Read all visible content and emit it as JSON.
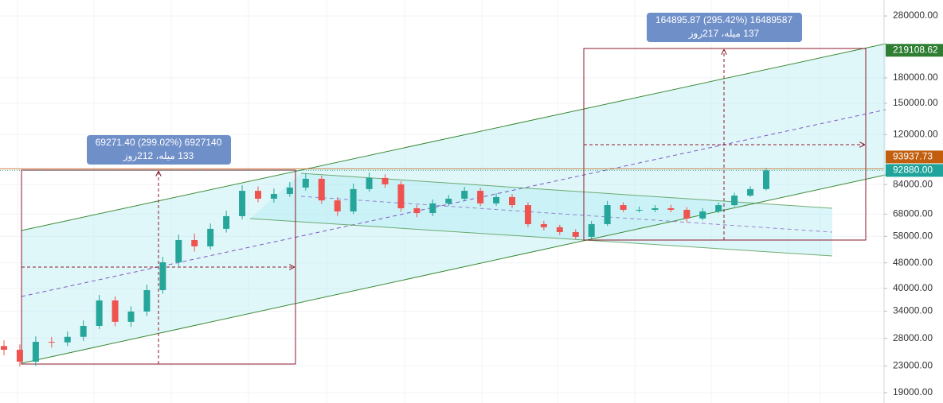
{
  "chart_data": {
    "type": "candlestick",
    "log_scale": true,
    "grid": true,
    "up_color": "#26a69a",
    "down_color": "#ef5350",
    "ylim": [
      17640,
      313800
    ],
    "yticks": [
      {
        "value": 280000,
        "label": "280000.00"
      },
      {
        "value": 180000,
        "label": "180000.00"
      },
      {
        "value": 150000,
        "label": "150000.00"
      },
      {
        "value": 120000,
        "label": "120000.00"
      },
      {
        "value": 84000,
        "label": "84000.00"
      },
      {
        "value": 68000,
        "label": "68000.00"
      },
      {
        "value": 58000,
        "label": "58000.00"
      },
      {
        "value": 48000,
        "label": "48000.00"
      },
      {
        "value": 40000,
        "label": "40000.00"
      },
      {
        "value": 34000,
        "label": "34000.00"
      },
      {
        "value": 28000,
        "label": "28000.00"
      },
      {
        "value": 23000,
        "label": "23000.00"
      },
      {
        "value": 19000,
        "label": "19000.00"
      }
    ],
    "open": [
      26500,
      25800,
      23700,
      27300,
      27200,
      28300,
      30600,
      36700,
      31500,
      33900,
      39500,
      48200,
      56500,
      54000,
      61200,
      67000,
      80300,
      75900,
      78500,
      82200,
      87500,
      75000,
      69300,
      81300,
      88000,
      84100,
      70900,
      68500,
      73400,
      75900,
      80300,
      73400,
      76800,
      72500,
      63300,
      61900,
      59800,
      57800,
      63300,
      72500,
      70100,
      70100,
      70900,
      70100,
      65900,
      69300,
      72500,
      77600,
      81300
    ],
    "high": [
      27600,
      26800,
      28400,
      28300,
      29400,
      31800,
      38200,
      37800,
      35200,
      41100,
      50100,
      58800,
      59200,
      63600,
      69700,
      83500,
      82800,
      81600,
      85500,
      91000,
      89500,
      76700,
      84500,
      91500,
      90400,
      86000,
      72500,
      75500,
      78000,
      82600,
      82000,
      78900,
      78400,
      74000,
      64800,
      63000,
      61000,
      64800,
      74700,
      74000,
      71800,
      72500,
      72600,
      71500,
      70900,
      74000,
      79200,
      83000,
      94500
    ],
    "low": [
      24800,
      22900,
      23000,
      26200,
      26500,
      27500,
      29900,
      30500,
      30400,
      32800,
      38500,
      46900,
      52000,
      52800,
      59600,
      65500,
      74000,
      73800,
      76900,
      80500,
      73200,
      67100,
      68000,
      79800,
      82000,
      69200,
      66500,
      67000,
      72000,
      74500,
      72000,
      72200,
      71000,
      62000,
      60500,
      58600,
      56700,
      57000,
      62500,
      69000,
      68800,
      69000,
      68900,
      64200,
      65000,
      68500,
      71800,
      76800,
      80500
    ],
    "close": [
      25800,
      23700,
      27300,
      27200,
      28300,
      30600,
      36700,
      31500,
      33900,
      39500,
      48200,
      56500,
      54000,
      61200,
      67000,
      80300,
      75900,
      78500,
      82200,
      87500,
      75000,
      69300,
      81300,
      88000,
      84100,
      70900,
      68500,
      73400,
      75900,
      80300,
      73400,
      76800,
      72500,
      63300,
      61900,
      59800,
      57800,
      63300,
      72500,
      70100,
      70100,
      70900,
      70100,
      65900,
      69300,
      72500,
      77600,
      81300,
      92880
    ],
    "markers": {
      "values": [
        219108.62,
        93937.73,
        92880
      ],
      "value_labels": [
        "219108.62",
        "93937.73",
        "92880.00"
      ],
      "colors": [
        "#2e7d32",
        "#c15f0f",
        "#1fa39a"
      ]
    },
    "annotations": [
      {
        "line1": "69271.40 (299.02%) 6927140",
        "line2": "133 میله، 212روز"
      },
      {
        "line1": "164895.87 (295.42%) 16489587",
        "line2": "137 میله، 217روز"
      }
    ]
  }
}
